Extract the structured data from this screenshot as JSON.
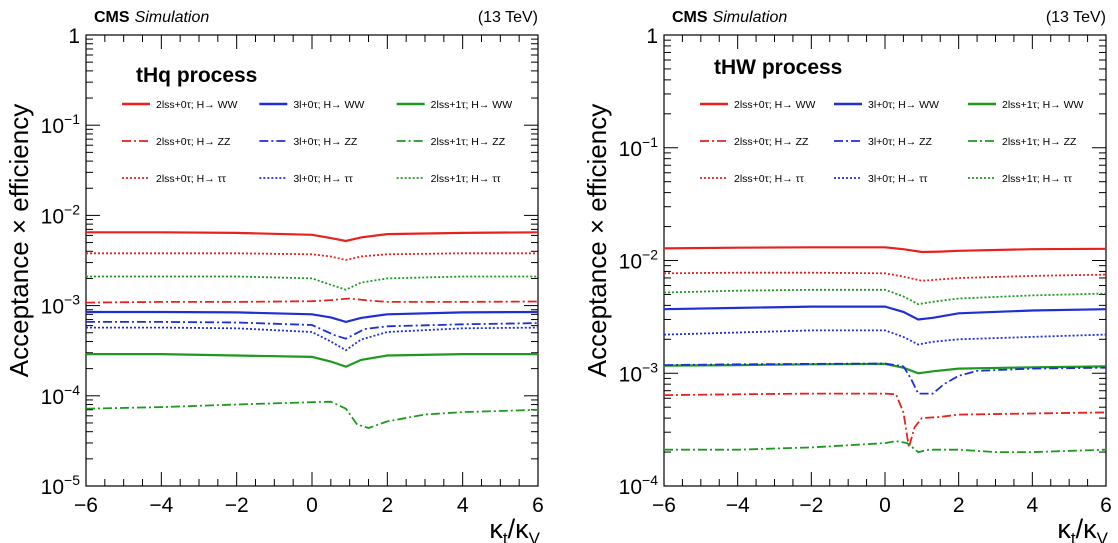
{
  "chart_data": [
    {
      "type": "line",
      "panel_label": "CMS",
      "panel_sublabel": "Simulation",
      "energy_label": "(13 TeV)",
      "process_label": "tHq process",
      "xlabel_main": "κ",
      "xlabel_sub1": "t",
      "xlabel_slash": "/κ",
      "xlabel_sub2": "V",
      "ylabel": "Acceptance × efficiency",
      "yscale": "log",
      "xlim": [
        -6,
        6
      ],
      "ylim": [
        1e-05,
        1
      ],
      "xticks": [
        "−6",
        "−4",
        "−2",
        "0",
        "2",
        "4",
        "6"
      ],
      "yticks": [
        {
          "base": "10",
          "exp": "−5",
          "value": 1e-05
        },
        {
          "base": "10",
          "exp": "−4",
          "value": 0.0001
        },
        {
          "base": "10",
          "exp": "−3",
          "value": 0.001
        },
        {
          "base": "10",
          "exp": "−2",
          "value": 0.01
        },
        {
          "base": "10",
          "exp": "−1",
          "value": 0.1
        },
        {
          "base": "1",
          "exp": "",
          "value": 1
        }
      ],
      "series": [
        {
          "name": "2lss+0τ; H→ WW",
          "color": "#e8211e",
          "dash": "solid",
          "x": [
            -6,
            -4,
            -2,
            0,
            0.5,
            0.9,
            1.3,
            2,
            4,
            6
          ],
          "values": [
            0.0065,
            0.0065,
            0.0064,
            0.0061,
            0.0056,
            0.0052,
            0.0057,
            0.0062,
            0.0064,
            0.0065
          ]
        },
        {
          "name": "3l+0τ; H→ WW",
          "color": "#1f2fd6",
          "dash": "solid",
          "x": [
            -6,
            -4,
            -2,
            0,
            0.5,
            0.9,
            1.3,
            2,
            4,
            6
          ],
          "values": [
            0.00085,
            0.00085,
            0.00084,
            0.0008,
            0.00074,
            0.00066,
            0.00073,
            0.0008,
            0.00084,
            0.00085
          ]
        },
        {
          "name": "2lss+1τ; H→ WW",
          "color": "#1d9a1d",
          "dash": "solid",
          "x": [
            -6,
            -4,
            -2,
            0,
            0.5,
            0.9,
            1.3,
            2,
            4,
            6
          ],
          "values": [
            0.00029,
            0.00029,
            0.00028,
            0.00027,
            0.00024,
            0.00021,
            0.00025,
            0.00028,
            0.00029,
            0.00029
          ]
        },
        {
          "name": "2lss+0τ; H→ ZZ",
          "color": "#e8211e",
          "dash": "dashdot",
          "x": [
            -6,
            -4,
            -2,
            0,
            0.5,
            1,
            1.5,
            2,
            4,
            6
          ],
          "values": [
            0.00108,
            0.0011,
            0.0011,
            0.00112,
            0.00115,
            0.0012,
            0.00114,
            0.0011,
            0.0011,
            0.00111
          ]
        },
        {
          "name": "3l+0τ; H→ ZZ",
          "color": "#1f2fd6",
          "dash": "dashdot",
          "x": [
            -6,
            -4,
            -2,
            0,
            0.6,
            0.9,
            1.4,
            2,
            4,
            6
          ],
          "values": [
            0.00066,
            0.00066,
            0.00065,
            0.00061,
            0.00047,
            0.00043,
            0.00055,
            0.00059,
            0.00062,
            0.00064
          ]
        },
        {
          "name": "2lss+1τ; H→ ZZ",
          "color": "#1d9a1d",
          "dash": "dashdot",
          "x": [
            -6,
            -4,
            -2,
            0,
            0.5,
            0.9,
            1.2,
            1.5,
            2,
            3,
            4,
            6
          ],
          "values": [
            7.2e-05,
            7.5e-05,
            8e-05,
            8.5e-05,
            8.6e-05,
            7.2e-05,
            4.8e-05,
            4.4e-05,
            5.2e-05,
            6.2e-05,
            6.6e-05,
            7e-05
          ]
        },
        {
          "name": "2lss+0τ; H→ ττ",
          "color": "#e8211e",
          "dash": "dotted",
          "x": [
            -6,
            -4,
            -2,
            0,
            0.5,
            0.9,
            1.3,
            2,
            4,
            6
          ],
          "values": [
            0.0038,
            0.0038,
            0.0038,
            0.0037,
            0.0035,
            0.0032,
            0.0035,
            0.0037,
            0.0038,
            0.0038
          ]
        },
        {
          "name": "3l+0τ; H→ ττ",
          "color": "#1f2fd6",
          "dash": "dotted",
          "x": [
            -6,
            -4,
            -2,
            0,
            0.5,
            0.9,
            1.3,
            2,
            4,
            6
          ],
          "values": [
            0.00057,
            0.00057,
            0.00056,
            0.00051,
            0.0004,
            0.00032,
            0.00042,
            0.00051,
            0.00056,
            0.00057
          ]
        },
        {
          "name": "2lss+1τ; H→ ττ",
          "color": "#1d9a1d",
          "dash": "dotted",
          "x": [
            -6,
            -4,
            -2,
            0,
            0.5,
            0.9,
            1.3,
            2,
            4,
            6
          ],
          "values": [
            0.0021,
            0.0021,
            0.0021,
            0.002,
            0.0017,
            0.0015,
            0.0018,
            0.002,
            0.0021,
            0.0021
          ]
        }
      ]
    },
    {
      "type": "line",
      "panel_label": "CMS",
      "panel_sublabel": "Simulation",
      "energy_label": "(13 TeV)",
      "process_label": "tHW process",
      "xlabel_main": "κ",
      "xlabel_sub1": "t",
      "xlabel_slash": "/κ",
      "xlabel_sub2": "V",
      "ylabel": "Acceptance × efficiency",
      "yscale": "log",
      "xlim": [
        -6,
        6
      ],
      "ylim": [
        0.0001,
        1
      ],
      "xticks": [
        "−6",
        "−4",
        "−2",
        "0",
        "2",
        "4",
        "6"
      ],
      "yticks": [
        {
          "base": "10",
          "exp": "−4",
          "value": 0.0001
        },
        {
          "base": "10",
          "exp": "−3",
          "value": 0.001
        },
        {
          "base": "10",
          "exp": "−2",
          "value": 0.01
        },
        {
          "base": "10",
          "exp": "−1",
          "value": 0.1
        },
        {
          "base": "1",
          "exp": "",
          "value": 1
        }
      ],
      "series": [
        {
          "name": "2lss+0τ; H→ WW",
          "color": "#e8211e",
          "dash": "solid",
          "x": [
            -6,
            -4,
            -2,
            0,
            0.5,
            1,
            1.5,
            2,
            4,
            6
          ],
          "values": [
            0.0128,
            0.013,
            0.0131,
            0.0131,
            0.0126,
            0.0119,
            0.012,
            0.0122,
            0.0126,
            0.0127
          ]
        },
        {
          "name": "3l+0τ; H→ WW",
          "color": "#1f2fd6",
          "dash": "solid",
          "x": [
            -6,
            -4,
            -2,
            0,
            0.5,
            0.9,
            1.3,
            2,
            4,
            6
          ],
          "values": [
            0.0037,
            0.0038,
            0.0039,
            0.0039,
            0.0035,
            0.003,
            0.0031,
            0.0034,
            0.0036,
            0.0037
          ]
        },
        {
          "name": "2lss+1τ; H→ WW",
          "color": "#1d9a1d",
          "dash": "solid",
          "x": [
            -6,
            -4,
            -2,
            0,
            0.5,
            0.9,
            1.3,
            2,
            4,
            6
          ],
          "values": [
            0.00117,
            0.00118,
            0.0012,
            0.00121,
            0.00112,
            0.001,
            0.00104,
            0.0011,
            0.00113,
            0.00115
          ]
        },
        {
          "name": "2lss+0τ; H→ ZZ",
          "color": "#e8211e",
          "dash": "dashdot",
          "x": [
            -6,
            -4,
            -2,
            0,
            0.3,
            0.5,
            0.65,
            0.8,
            1,
            1.5,
            2,
            4,
            6
          ],
          "values": [
            0.00064,
            0.00065,
            0.00066,
            0.00066,
            0.00065,
            0.00045,
            0.00022,
            0.00033,
            0.0004,
            0.00041,
            0.00043,
            0.00044,
            0.00045
          ]
        },
        {
          "name": "3l+0τ; H→ ZZ",
          "color": "#1f2fd6",
          "dash": "dashdot",
          "x": [
            -6,
            -4,
            -2,
            0,
            0.5,
            0.7,
            0.9,
            1.3,
            1.6,
            2,
            2.5,
            4,
            6
          ],
          "values": [
            0.00118,
            0.0012,
            0.00121,
            0.00122,
            0.00115,
            0.0009,
            0.00066,
            0.00066,
            0.0008,
            0.00095,
            0.00105,
            0.0011,
            0.00112
          ]
        },
        {
          "name": "2lss+1τ; H→ ZZ",
          "color": "#1d9a1d",
          "dash": "dashdot",
          "x": [
            -6,
            -4,
            -2,
            0,
            0.3,
            0.6,
            0.9,
            1.2,
            2,
            3,
            4,
            6
          ],
          "values": [
            0.00021,
            0.00021,
            0.00022,
            0.00024,
            0.00025,
            0.00024,
            0.0002,
            0.00021,
            0.00021,
            0.0002,
            0.0002,
            0.00021
          ]
        },
        {
          "name": "2lss+0τ; H→ ττ",
          "color": "#e8211e",
          "dash": "dotted",
          "x": [
            -6,
            -4,
            -2,
            0,
            0.5,
            1,
            1.5,
            2,
            4,
            6
          ],
          "values": [
            0.0077,
            0.0078,
            0.0078,
            0.0077,
            0.0072,
            0.0066,
            0.0068,
            0.007,
            0.0073,
            0.0075
          ]
        },
        {
          "name": "3l+0τ; H→ ττ",
          "color": "#1f2fd6",
          "dash": "dotted",
          "x": [
            -6,
            -4,
            -2,
            0,
            0.5,
            0.9,
            1.3,
            2,
            4,
            6
          ],
          "values": [
            0.0022,
            0.0023,
            0.0024,
            0.0024,
            0.0021,
            0.0018,
            0.0019,
            0.002,
            0.0021,
            0.0022
          ]
        },
        {
          "name": "2lss+1τ; H→ ττ",
          "color": "#1d9a1d",
          "dash": "dotted",
          "x": [
            -6,
            -4,
            -2,
            0,
            0.5,
            0.9,
            1.3,
            2,
            4,
            6
          ],
          "values": [
            0.0052,
            0.0054,
            0.0055,
            0.0055,
            0.0048,
            0.0041,
            0.0043,
            0.0046,
            0.0049,
            0.0051
          ]
        }
      ]
    }
  ]
}
